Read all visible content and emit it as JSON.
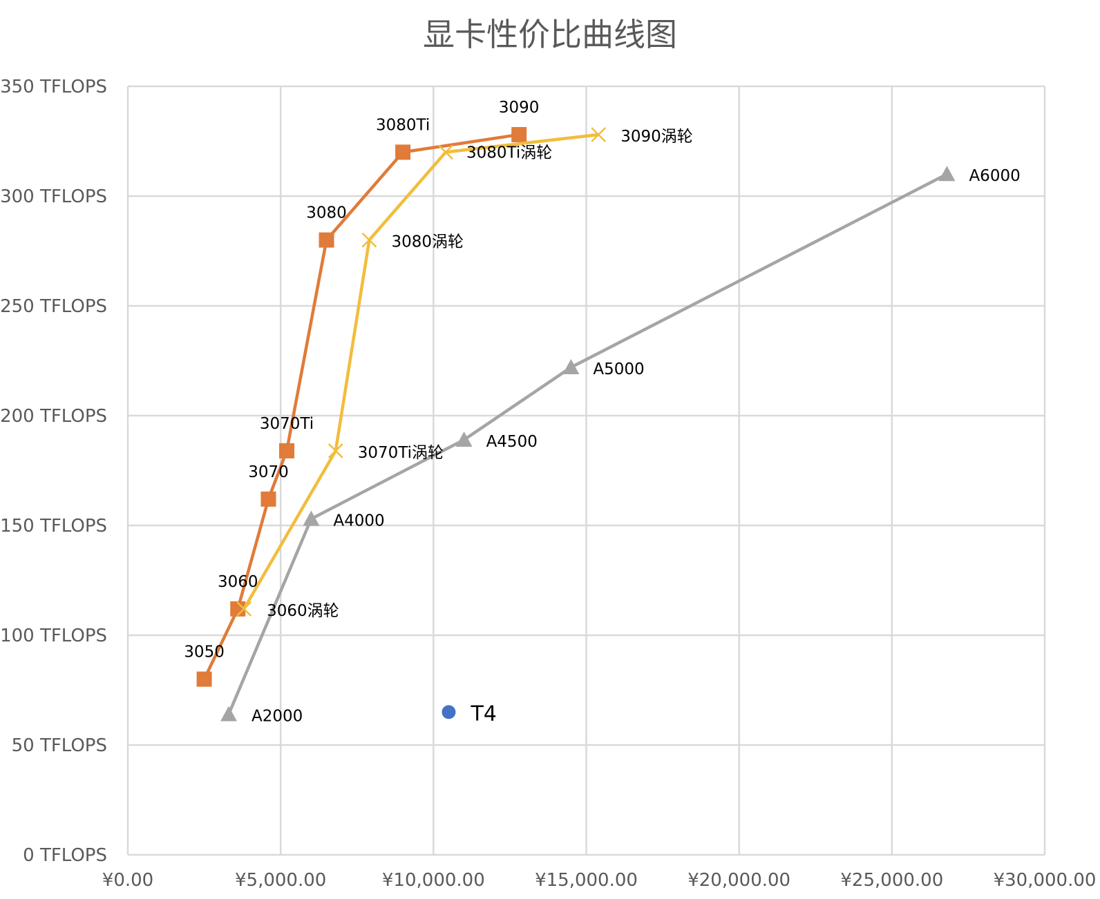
{
  "chart_data": {
    "type": "scatter",
    "title": "显卡性价比曲线图",
    "xlabel": "",
    "ylabel": "",
    "xlim": [
      0,
      30000
    ],
    "ylim": [
      0,
      350
    ],
    "x_ticks": [
      0,
      5000,
      10000,
      15000,
      20000,
      25000,
      30000
    ],
    "x_tick_labels": [
      "¥0.00",
      "¥5,000.00",
      "¥10,000.00",
      "¥15,000.00",
      "¥20,000.00",
      "¥25,000.00",
      "¥30,000.00"
    ],
    "y_ticks": [
      0,
      50,
      100,
      150,
      200,
      250,
      300,
      350
    ],
    "y_tick_labels": [
      "0 TFLOPS",
      "50 TFLOPS",
      "100 TFLOPS",
      "150 TFLOPS",
      "200 TFLOPS",
      "250 TFLOPS",
      "300 TFLOPS",
      "350 TFLOPS"
    ],
    "grid": true,
    "legend": "none",
    "series": [
      {
        "color": "#E07B39",
        "marker": "square",
        "connected": true,
        "points": [
          {
            "x": 2500,
            "y": 80,
            "label": "3050"
          },
          {
            "x": 3600,
            "y": 112,
            "label": "3060"
          },
          {
            "x": 4600,
            "y": 162,
            "label": "3070"
          },
          {
            "x": 5200,
            "y": 184,
            "label": "3070Ti"
          },
          {
            "x": 6500,
            "y": 280,
            "label": "3080"
          },
          {
            "x": 9000,
            "y": 320,
            "label": "3080Ti"
          },
          {
            "x": 12800,
            "y": 328,
            "label": "3090"
          }
        ]
      },
      {
        "color": "#F2BD3C",
        "marker": "x",
        "connected": true,
        "points": [
          {
            "x": 3800,
            "y": 112,
            "label": "3060涡轮"
          },
          {
            "x": 6800,
            "y": 184,
            "label": "3070Ti涡轮"
          },
          {
            "x": 7900,
            "y": 280,
            "label": "3080涡轮"
          },
          {
            "x": 10400,
            "y": 320,
            "label": "3080Ti涡轮"
          },
          {
            "x": 15400,
            "y": 328,
            "label": "3090涡轮"
          }
        ]
      },
      {
        "color": "#A5A5A5",
        "marker": "triangle",
        "connected": true,
        "points": [
          {
            "x": 3300,
            "y": 64,
            "label": "A2000"
          },
          {
            "x": 6000,
            "y": 153,
            "label": "A4000"
          },
          {
            "x": 11000,
            "y": 189,
            "label": "A4500"
          },
          {
            "x": 14500,
            "y": 222,
            "label": "A5000"
          },
          {
            "x": 26800,
            "y": 310,
            "label": "A6000"
          }
        ]
      },
      {
        "color": "#4472C4",
        "marker": "circle",
        "connected": false,
        "points": [
          {
            "x": 10500,
            "y": 65,
            "label": "T4"
          }
        ]
      }
    ]
  }
}
